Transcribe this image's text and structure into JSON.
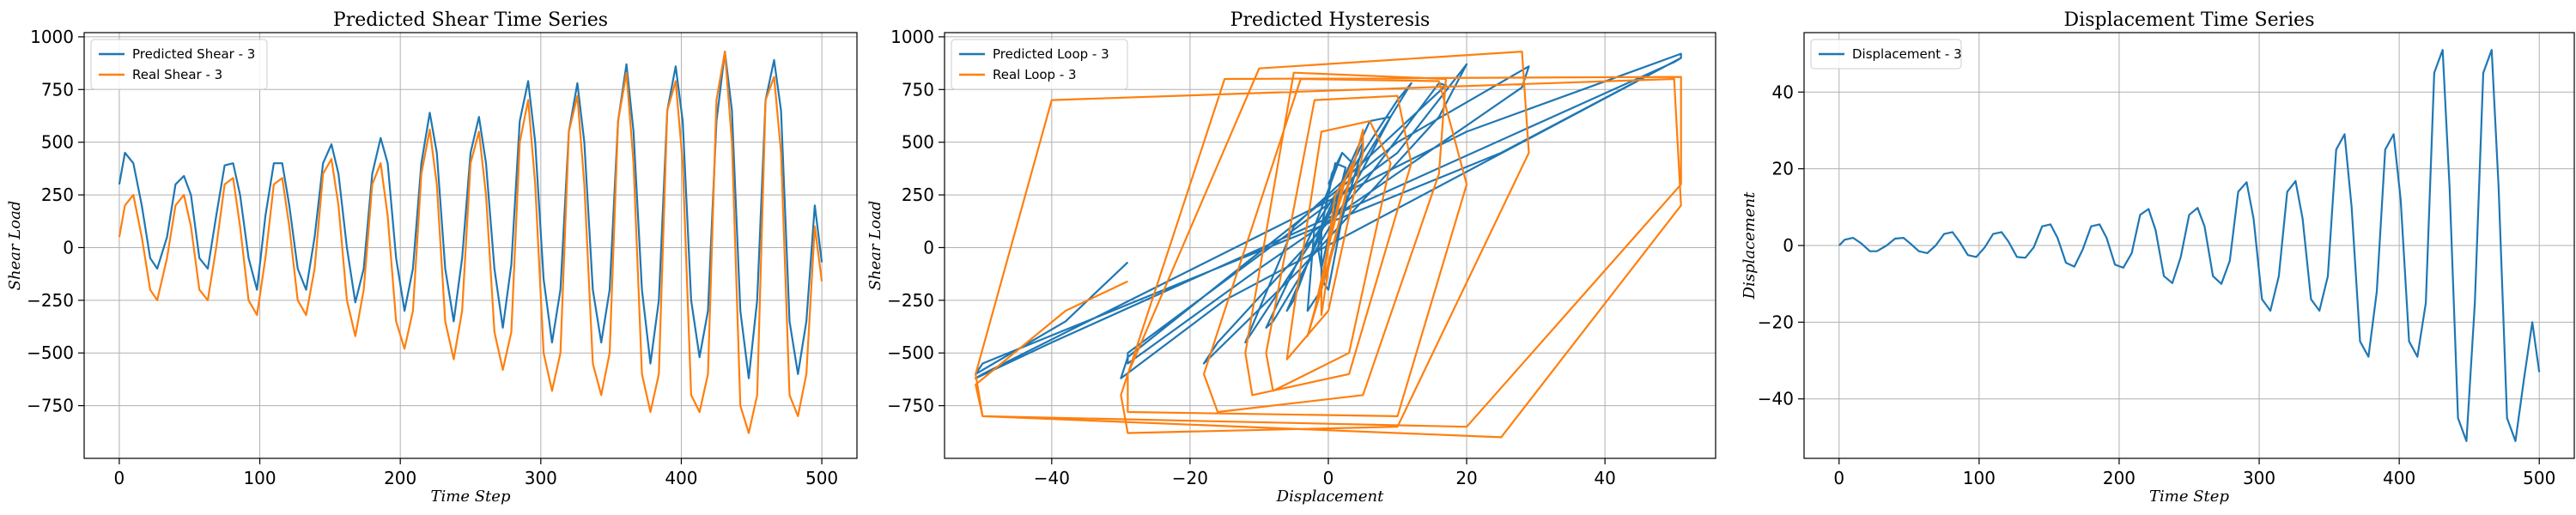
{
  "chart_data": [
    {
      "type": "line",
      "title": "Predicted Shear Time Series",
      "xlabel": "Time Step",
      "ylabel": "Shear Load",
      "xlim": [
        -25,
        525
      ],
      "ylim": [
        -1000,
        1020
      ],
      "xticks": [
        0,
        100,
        200,
        300,
        400,
        500
      ],
      "yticks": [
        -750,
        -500,
        -250,
        0,
        250,
        500,
        750,
        1000
      ],
      "grid": true,
      "legend_position": "top-left",
      "series": [
        {
          "name": "Predicted Shear - 3",
          "color": "#1f77b4",
          "x": [
            0,
            4,
            10,
            16,
            22,
            27,
            34,
            40,
            46,
            51,
            57,
            63,
            69,
            75,
            81,
            86,
            92,
            98,
            104,
            110,
            116,
            121,
            127,
            133,
            139,
            145,
            151,
            156,
            162,
            168,
            174,
            180,
            186,
            191,
            197,
            203,
            209,
            215,
            221,
            226,
            232,
            238,
            244,
            250,
            256,
            261,
            267,
            273,
            279,
            285,
            291,
            296,
            302,
            308,
            314,
            320,
            326,
            331,
            337,
            343,
            349,
            355,
            361,
            366,
            372,
            378,
            384,
            390,
            396,
            401,
            407,
            413,
            419,
            425,
            431,
            436,
            442,
            448,
            454,
            460,
            466,
            471,
            477,
            483,
            489,
            495,
            500
          ],
          "y": [
            300,
            450,
            400,
            200,
            -50,
            -100,
            50,
            300,
            340,
            250,
            -50,
            -100,
            150,
            390,
            400,
            250,
            -50,
            -200,
            150,
            400,
            400,
            200,
            -100,
            -200,
            50,
            400,
            490,
            350,
            0,
            -260,
            -100,
            350,
            520,
            400,
            -50,
            -300,
            -100,
            400,
            640,
            450,
            -100,
            -350,
            -50,
            450,
            620,
            400,
            -100,
            -380,
            -80,
            600,
            790,
            500,
            -150,
            -450,
            -200,
            550,
            780,
            500,
            -200,
            -450,
            -200,
            600,
            870,
            550,
            -200,
            -550,
            -250,
            650,
            860,
            600,
            -250,
            -520,
            -300,
            600,
            930,
            650,
            -300,
            -620,
            -250,
            700,
            890,
            650,
            -350,
            -600,
            -350,
            200,
            -70
          ]
        },
        {
          "name": "Real Shear - 3",
          "color": "#ff7f0e",
          "x": [
            0,
            4,
            10,
            16,
            22,
            27,
            34,
            40,
            46,
            51,
            57,
            63,
            69,
            75,
            81,
            86,
            92,
            98,
            104,
            110,
            116,
            121,
            127,
            133,
            139,
            145,
            151,
            156,
            162,
            168,
            174,
            180,
            186,
            191,
            197,
            203,
            209,
            215,
            221,
            226,
            232,
            238,
            244,
            250,
            256,
            261,
            267,
            273,
            279,
            285,
            291,
            296,
            302,
            308,
            314,
            320,
            326,
            331,
            337,
            343,
            349,
            355,
            361,
            366,
            372,
            378,
            384,
            390,
            396,
            401,
            407,
            413,
            419,
            425,
            431,
            436,
            442,
            448,
            454,
            460,
            466,
            471,
            477,
            483,
            489,
            495,
            500
          ],
          "y": [
            50,
            200,
            250,
            50,
            -200,
            -250,
            -50,
            200,
            250,
            100,
            -200,
            -250,
            0,
            300,
            330,
            100,
            -250,
            -320,
            -50,
            300,
            330,
            100,
            -250,
            -320,
            -100,
            350,
            420,
            200,
            -250,
            -420,
            -200,
            300,
            400,
            150,
            -350,
            -480,
            -300,
            350,
            560,
            300,
            -350,
            -530,
            -300,
            400,
            550,
            250,
            -400,
            -580,
            -400,
            500,
            700,
            300,
            -500,
            -680,
            -500,
            550,
            720,
            300,
            -550,
            -700,
            -500,
            600,
            830,
            400,
            -600,
            -780,
            -600,
            650,
            790,
            400,
            -700,
            -780,
            -600,
            700,
            930,
            500,
            -750,
            -880,
            -700,
            700,
            810,
            450,
            -700,
            -800,
            -600,
            100,
            -160
          ]
        }
      ]
    },
    {
      "type": "line",
      "title": "Predicted Hysteresis",
      "xlabel": "Displacement",
      "ylabel": "Shear Load",
      "xlim": [
        -55.5,
        56
      ],
      "ylim": [
        -1000,
        1020
      ],
      "xticks": [
        -40,
        -20,
        0,
        20,
        40
      ],
      "yticks": [
        -750,
        -500,
        -250,
        0,
        250,
        500,
        750,
        1000
      ],
      "grid": true,
      "legend_position": "top-left",
      "series": [
        {
          "name": "Predicted Loop - 3",
          "color": "#1f77b4",
          "x": [
            0,
            2,
            0.5,
            -1.5,
            -1,
            0,
            2.5,
            1,
            -1,
            -1,
            0,
            3.5,
            2,
            -2,
            -3,
            -1,
            5,
            5,
            0,
            -6,
            -5,
            -1,
            6,
            9,
            3,
            -8,
            -9,
            -2,
            10,
            12,
            3,
            -11,
            -12,
            -5,
            17,
            16,
            5,
            -16,
            -18,
            -4,
            16,
            20,
            10,
            -29,
            -29,
            -10,
            28,
            29,
            10,
            -29,
            -30,
            -15,
            51,
            51,
            20,
            -50,
            -51,
            -40,
            50,
            51,
            25,
            -50,
            -51,
            -38,
            -29
          ],
          "y": [
            300,
            450,
            350,
            0,
            -100,
            50,
            380,
            400,
            100,
            -150,
            -200,
            400,
            450,
            100,
            -300,
            -200,
            480,
            500,
            150,
            -300,
            -250,
            100,
            600,
            620,
            250,
            -350,
            -380,
            100,
            700,
            780,
            300,
            -400,
            -450,
            100,
            770,
            780,
            300,
            -450,
            -550,
            -100,
            620,
            870,
            450,
            -500,
            -550,
            -100,
            760,
            860,
            500,
            -520,
            -620,
            -250,
            900,
            920,
            550,
            -600,
            -620,
            -450,
            880,
            900,
            450,
            -550,
            -600,
            -350,
            -70
          ]
        },
        {
          "name": "Real Loop - 3",
          "color": "#ff7f0e",
          "x": [
            0,
            2,
            0.5,
            -1.5,
            -1,
            0,
            2.5,
            1,
            -1,
            -1,
            0,
            3.5,
            2,
            -2,
            -3,
            -1,
            5,
            5,
            0,
            -6,
            -5,
            -1,
            6,
            9,
            3,
            -8,
            -9,
            -2,
            10,
            12,
            3,
            -11,
            -12,
            -5,
            17,
            16,
            5,
            -16,
            -18,
            -4,
            16,
            20,
            10,
            -29,
            -29,
            -10,
            28,
            29,
            10,
            -29,
            -30,
            -15,
            51,
            51,
            20,
            -50,
            -51,
            -40,
            50,
            51,
            25,
            -50,
            -51,
            -38,
            -29
          ],
          "y": [
            50,
            250,
            100,
            -250,
            -200,
            0,
            330,
            250,
            -200,
            -320,
            -100,
            400,
            300,
            -300,
            -420,
            -200,
            560,
            450,
            -300,
            -530,
            -300,
            550,
            600,
            400,
            -500,
            -680,
            -500,
            700,
            720,
            400,
            -600,
            -700,
            -500,
            830,
            800,
            350,
            -700,
            -780,
            -600,
            800,
            790,
            300,
            -800,
            -780,
            -600,
            850,
            930,
            450,
            -850,
            -880,
            -700,
            800,
            810,
            300,
            -850,
            -800,
            -600,
            700,
            800,
            200,
            -900,
            -800,
            -650,
            -300,
            -160
          ]
        }
      ]
    },
    {
      "type": "line",
      "title": "Displacement Time Series",
      "xlabel": "Time Step",
      "ylabel": "Displacement",
      "xlim": [
        -25,
        525
      ],
      "ylim": [
        -55.5,
        55.5
      ],
      "xticks": [
        0,
        100,
        200,
        300,
        400,
        500
      ],
      "yticks": [
        -40,
        -20,
        0,
        20,
        40
      ],
      "grid": true,
      "legend_position": "top-left",
      "series": [
        {
          "name": "Displacement - 3",
          "color": "#1f77b4",
          "x": [
            0,
            4,
            10,
            16,
            22,
            27,
            34,
            40,
            46,
            51,
            57,
            63,
            69,
            75,
            81,
            86,
            92,
            98,
            104,
            110,
            116,
            121,
            127,
            133,
            139,
            145,
            151,
            156,
            162,
            168,
            174,
            180,
            186,
            191,
            197,
            203,
            209,
            215,
            221,
            226,
            232,
            238,
            244,
            250,
            256,
            261,
            267,
            273,
            279,
            285,
            291,
            296,
            302,
            308,
            314,
            320,
            326,
            331,
            337,
            343,
            349,
            355,
            361,
            366,
            372,
            378,
            384,
            390,
            396,
            401,
            407,
            413,
            419,
            425,
            431,
            436,
            442,
            448,
            454,
            460,
            466,
            471,
            477,
            483,
            489,
            495,
            500
          ],
          "y": [
            0,
            1.5,
            2,
            0.5,
            -1.5,
            -1.5,
            0,
            1.8,
            2,
            0.5,
            -1.5,
            -2,
            0,
            3,
            3.5,
            1,
            -2.5,
            -3,
            -0.5,
            3,
            3.5,
            1,
            -3,
            -3.2,
            -0.5,
            5,
            5.5,
            2,
            -4.5,
            -5.5,
            -1,
            5,
            5.5,
            2,
            -5,
            -5.8,
            -2,
            8,
            9.5,
            4,
            -8,
            -9.8,
            -3,
            8,
            9.8,
            5,
            -8,
            -10,
            -4,
            14,
            16.5,
            7,
            -14,
            -17,
            -8,
            14,
            16.8,
            7,
            -14,
            -17,
            -8,
            25,
            29,
            10,
            -25,
            -29,
            -12,
            25,
            29,
            12,
            -25,
            -29,
            -15,
            45,
            51,
            15,
            -45,
            -51,
            -15,
            45,
            51,
            15,
            -45,
            -51,
            -35,
            -20,
            -33
          ]
        }
      ]
    }
  ]
}
